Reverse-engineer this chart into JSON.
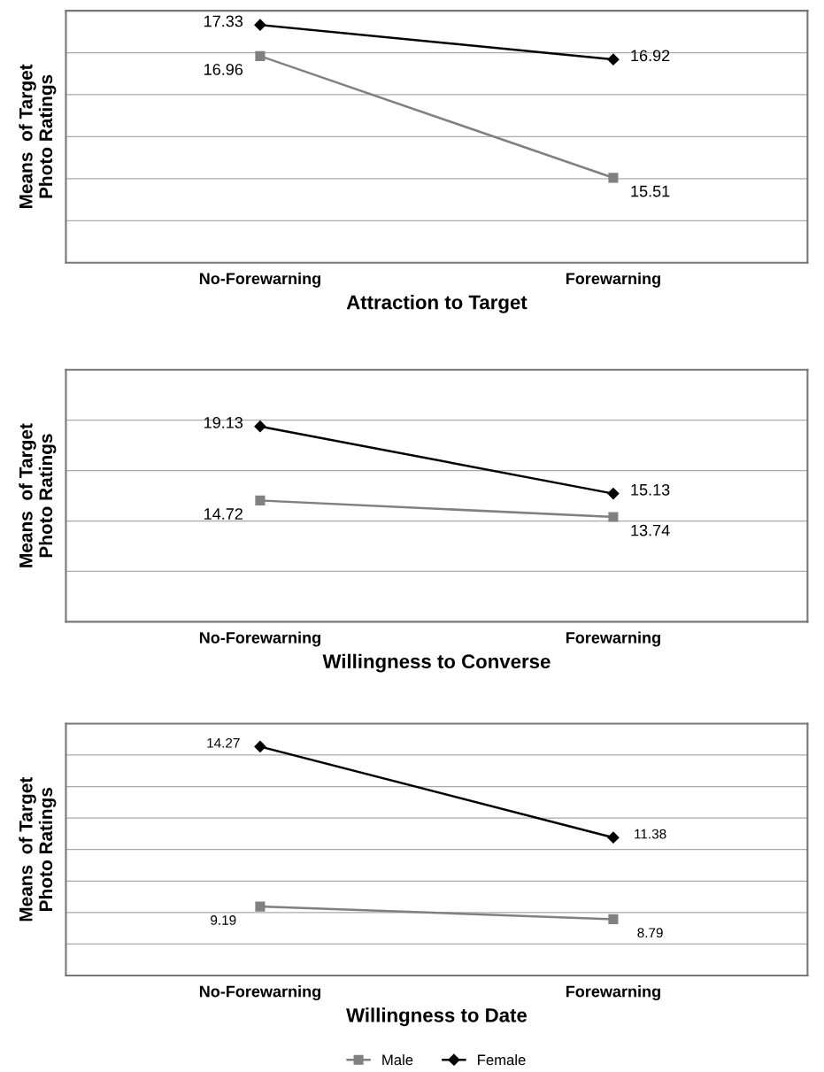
{
  "chart_data": [
    {
      "type": "line",
      "xlabel": "Attraction to Target",
      "ylabel": "Means  of Target\nPhoto Ratings",
      "categories": [
        "No-Forewarning",
        "Forewarning"
      ],
      "ylim": [
        14.5,
        17.5
      ],
      "yticks": [
        {
          "value": 15,
          "label": null
        },
        {
          "value": 15.5,
          "label": null
        },
        {
          "value": 16,
          "label": null
        },
        {
          "value": 16.5,
          "label": null
        },
        {
          "value": 17,
          "label": null
        }
      ],
      "grid": "y",
      "tick_labels": "x",
      "data_labels": true,
      "series": [
        {
          "color": "#808080",
          "marker": "square",
          "values": [
            16.96,
            15.51
          ]
        },
        {
          "color": "#000000",
          "marker": "diamond",
          "values": [
            17.33,
            16.92
          ]
        }
      ]
    },
    {
      "type": "line",
      "xlabel": "Willingness to Converse",
      "ylabel": "Means  of Target\nPhoto Ratings",
      "categories": [
        "No-Forewarning",
        "Forewarning"
      ],
      "ylim": [
        7.5,
        22.5
      ],
      "yticks": [
        {
          "value": 10.5,
          "label": null
        },
        {
          "value": 13.5,
          "label": null
        },
        {
          "value": 16.5,
          "label": null
        },
        {
          "value": 19.5,
          "label": null
        }
      ],
      "grid": "y",
      "tick_labels": "x",
      "data_labels": true,
      "series": [
        {
          "color": "#808080",
          "marker": "square",
          "values": [
            14.72,
            13.74
          ]
        },
        {
          "color": "#000000",
          "marker": "diamond",
          "values": [
            19.13,
            15.13
          ]
        }
      ]
    },
    {
      "type": "line",
      "xlabel": "Willingness to Date",
      "ylabel": "Means  of Target\nPhoto Ratings",
      "categories": [
        "No-Forewarning",
        "Forewarning"
      ],
      "ylim": [
        7,
        15
      ],
      "yticks": [
        {
          "value": 8,
          "label": null
        },
        {
          "value": 9,
          "label": null
        },
        {
          "value": 10,
          "label": null
        },
        {
          "value": 11,
          "label": null
        },
        {
          "value": 12,
          "label": null
        },
        {
          "value": 13,
          "label": null
        },
        {
          "value": 14,
          "label": null
        }
      ],
      "grid": "y",
      "tick_labels": "x",
      "data_labels": true,
      "legend": "bottom",
      "series": [
        {
          "name": "Male",
          "color": "#808080",
          "marker": "square",
          "values": [
            9.19,
            8.79
          ]
        },
        {
          "name": "Female",
          "color": "#000000",
          "marker": "diamond",
          "values": [
            14.27,
            11.38
          ]
        }
      ]
    }
  ]
}
